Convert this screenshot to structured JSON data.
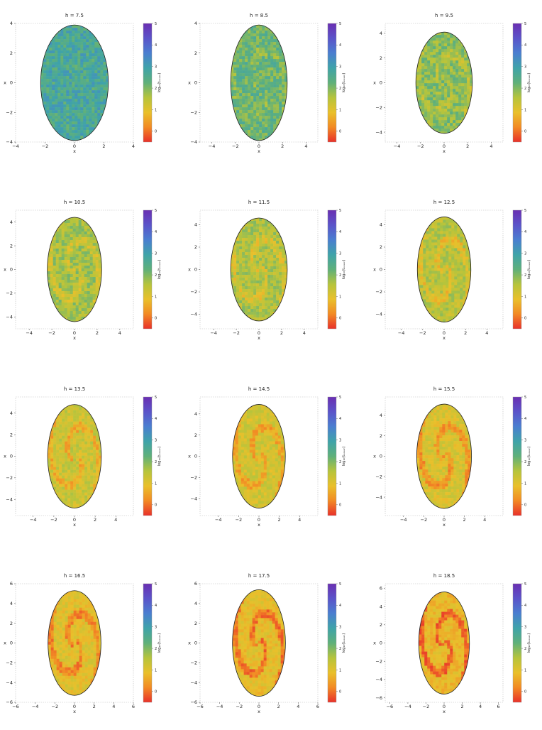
{
  "chart_data": [
    {
      "type": "heatmap",
      "title": "h = 7.5",
      "xlabel": "x",
      "ylabel": "x",
      "colorbar_label": "log₁₀(tₒₑₛₑₙ)",
      "xlim": [
        -4,
        4
      ],
      "ylim": [
        -4,
        4
      ],
      "xticks": [
        -4,
        -2,
        0,
        2,
        4
      ],
      "yticks": [
        -4,
        -2,
        0,
        2,
        4
      ],
      "ellipse": {
        "a": 2.3,
        "b": 3.9
      },
      "colorbar_ticks": [
        0,
        1,
        2,
        3,
        4,
        5
      ],
      "clim": [
        -0.5,
        5
      ],
      "mean_level": 2.7,
      "islands": []
    },
    {
      "type": "heatmap",
      "title": "h = 8.5",
      "xlabel": "x",
      "ylabel": "x",
      "colorbar_label": "log₁₀(tₒₑₛₑₙ)",
      "xlim": [
        -5,
        5
      ],
      "ylim": [
        -4,
        4
      ],
      "xticks": [
        -4,
        -2,
        0,
        2,
        4
      ],
      "yticks": [
        -4,
        -2,
        0,
        2,
        4
      ],
      "ellipse": {
        "a": 2.4,
        "b": 3.9
      },
      "colorbar_ticks": [
        0,
        1,
        2,
        3,
        4,
        5
      ],
      "clim": [
        -0.5,
        5
      ],
      "mean_level": 2.2,
      "islands": []
    },
    {
      "type": "heatmap",
      "title": "h = 9.5",
      "xlabel": "x",
      "ylabel": "x",
      "colorbar_label": "log₁₀(tₒₑₛₑₙ)",
      "xlim": [
        -5,
        5
      ],
      "ylim": [
        -4.8,
        4.8
      ],
      "xticks": [
        -4,
        -2,
        0,
        2,
        4
      ],
      "yticks": [
        -4,
        -2,
        0,
        2,
        4
      ],
      "ellipse": {
        "a": 2.4,
        "b": 4.1
      },
      "colorbar_ticks": [
        0,
        1,
        2,
        3,
        4,
        5
      ],
      "clim": [
        -0.5,
        5
      ],
      "mean_level": 1.9,
      "islands": []
    },
    {
      "type": "heatmap",
      "title": "h = 10.5",
      "xlabel": "x",
      "ylabel": "x",
      "colorbar_label": "log₁₀(tₒₑₛₑₙ)",
      "xlim": [
        -5.2,
        5.2
      ],
      "ylim": [
        -5,
        5
      ],
      "xticks": [
        -4,
        -2,
        0,
        2,
        4
      ],
      "yticks": [
        -4,
        -2,
        0,
        2,
        4
      ],
      "ellipse": {
        "a": 2.4,
        "b": 4.4
      },
      "colorbar_ticks": [
        0,
        1,
        2,
        3,
        4,
        5
      ],
      "clim": [
        -0.5,
        5
      ],
      "mean_level": 1.7,
      "islands": []
    },
    {
      "type": "heatmap",
      "title": "h = 11.5",
      "xlabel": "x",
      "ylabel": "x",
      "colorbar_label": "log₁₀(tₒₑₛₑₙ)",
      "xlim": [
        -5.2,
        5.2
      ],
      "ylim": [
        -5.3,
        5.3
      ],
      "xticks": [
        -4,
        -2,
        0,
        2,
        4
      ],
      "yticks": [
        -4,
        -2,
        0,
        2,
        4
      ],
      "ellipse": {
        "a": 2.5,
        "b": 4.6
      },
      "colorbar_ticks": [
        0,
        1,
        2,
        3,
        4,
        5
      ],
      "clim": [
        -0.5,
        5
      ],
      "mean_level": 1.6,
      "islands": []
    },
    {
      "type": "heatmap",
      "title": "h = 12.5",
      "xlabel": "x",
      "ylabel": "x",
      "colorbar_label": "log₁₀(tₒₑₛₑₙ)",
      "xlim": [
        -5.5,
        5.5
      ],
      "ylim": [
        -5.3,
        5.3
      ],
      "xticks": [
        -4,
        -2,
        0,
        2,
        4
      ],
      "yticks": [
        -4,
        -2,
        0,
        2,
        4
      ],
      "ellipse": {
        "a": 2.5,
        "b": 4.7
      },
      "colorbar_ticks": [
        0,
        1,
        2,
        3,
        4,
        5
      ],
      "clim": [
        -0.5,
        5
      ],
      "mean_level": 1.5,
      "islands": []
    },
    {
      "type": "heatmap",
      "title": "h = 13.5",
      "xlabel": "x",
      "ylabel": "x",
      "colorbar_label": "log₁₀(tₒₑₛₑₙ)",
      "xlim": [
        -5.7,
        5.7
      ],
      "ylim": [
        -5.5,
        5.5
      ],
      "xticks": [
        -4,
        -2,
        0,
        2,
        4
      ],
      "yticks": [
        -4,
        -2,
        0,
        2,
        4
      ],
      "ellipse": {
        "a": 2.6,
        "b": 4.8
      },
      "colorbar_ticks": [
        0,
        1,
        2,
        3,
        4,
        5
      ],
      "clim": [
        -0.5,
        5
      ],
      "mean_level": 1.3,
      "islands": []
    },
    {
      "type": "heatmap",
      "title": "h = 14.5",
      "xlabel": "x",
      "ylabel": "x",
      "colorbar_label": "log₁₀(tₒₑₛₑₙ)",
      "xlim": [
        -5.8,
        5.8
      ],
      "ylim": [
        -5.6,
        5.6
      ],
      "xticks": [
        -4,
        -2,
        0,
        2,
        4
      ],
      "yticks": [
        -4,
        -2,
        0,
        2,
        4
      ],
      "ellipse": {
        "a": 2.6,
        "b": 4.9
      },
      "colorbar_ticks": [
        0,
        1,
        2,
        3,
        4,
        5
      ],
      "clim": [
        -0.5,
        5
      ],
      "mean_level": 1.2,
      "islands": []
    },
    {
      "type": "heatmap",
      "title": "h = 15.5",
      "xlabel": "x",
      "ylabel": "x",
      "colorbar_label": "log₁₀(tₒₑₛₑₙ)",
      "xlim": [
        -5.8,
        5.8
      ],
      "ylim": [
        -5.8,
        5.8
      ],
      "xticks": [
        -4,
        -2,
        0,
        2,
        4
      ],
      "yticks": [
        -4,
        -2,
        0,
        2,
        4
      ],
      "ellipse": {
        "a": 2.7,
        "b": 5.1
      },
      "colorbar_ticks": [
        0,
        1,
        2,
        3,
        4,
        5
      ],
      "clim": [
        -0.5,
        5
      ],
      "mean_level": 1.1,
      "islands": []
    },
    {
      "type": "heatmap",
      "title": "h = 16.5",
      "xlabel": "x",
      "ylabel": "x",
      "colorbar_label": "log₁₀(tₒₑₛₑₙ)",
      "xlim": [
        -6,
        6
      ],
      "ylim": [
        -6,
        6
      ],
      "xticks": [
        -6,
        -4,
        -2,
        0,
        2,
        4,
        6
      ],
      "yticks": [
        -6,
        -4,
        -2,
        0,
        2,
        4,
        6
      ],
      "ellipse": {
        "a": 2.7,
        "b": 5.3
      },
      "colorbar_ticks": [
        0,
        1,
        2,
        3,
        4,
        5
      ],
      "clim": [
        -0.5,
        5
      ],
      "mean_level": 1.0,
      "islands": []
    },
    {
      "type": "heatmap",
      "title": "h = 17.5",
      "xlabel": "x",
      "ylabel": "x",
      "colorbar_label": "log₁₀(tₒₑₛₑₙ)",
      "xlim": [
        -6,
        6
      ],
      "ylim": [
        -6,
        6
      ],
      "xticks": [
        -6,
        -4,
        -2,
        0,
        2,
        4,
        6
      ],
      "yticks": [
        -6,
        -4,
        -2,
        0,
        2,
        4,
        6
      ],
      "ellipse": {
        "a": 2.7,
        "b": 5.4
      },
      "colorbar_ticks": [
        0,
        1,
        2,
        3,
        4,
        5
      ],
      "clim": [
        -0.5,
        5
      ],
      "mean_level": 0.9,
      "islands": []
    },
    {
      "type": "heatmap",
      "title": "h = 18.5",
      "xlabel": "x",
      "ylabel": "x",
      "colorbar_label": "log₁₀(tₒₑₛₑₙ)",
      "xlim": [
        -6.5,
        6.5
      ],
      "ylim": [
        -6.5,
        6.5
      ],
      "xticks": [
        -6,
        -4,
        -2,
        0,
        2,
        4,
        6
      ],
      "yticks": [
        -6,
        -4,
        -2,
        0,
        2,
        4,
        6
      ],
      "ellipse": {
        "a": 2.8,
        "b": 5.6
      },
      "colorbar_ticks": [
        0,
        1,
        2,
        3,
        4,
        5
      ],
      "clim": [
        -0.5,
        5
      ],
      "mean_level": 0.8,
      "islands": []
    }
  ],
  "colors": {
    "colormap": [
      "#e8312a",
      "#f28a24",
      "#e9c02b",
      "#b6c43c",
      "#5fb07a",
      "#3fa3a9",
      "#4a7ed0",
      "#5b54c9",
      "#6a2fb2"
    ],
    "frame": "#bbbbbb",
    "text": "#222222"
  }
}
